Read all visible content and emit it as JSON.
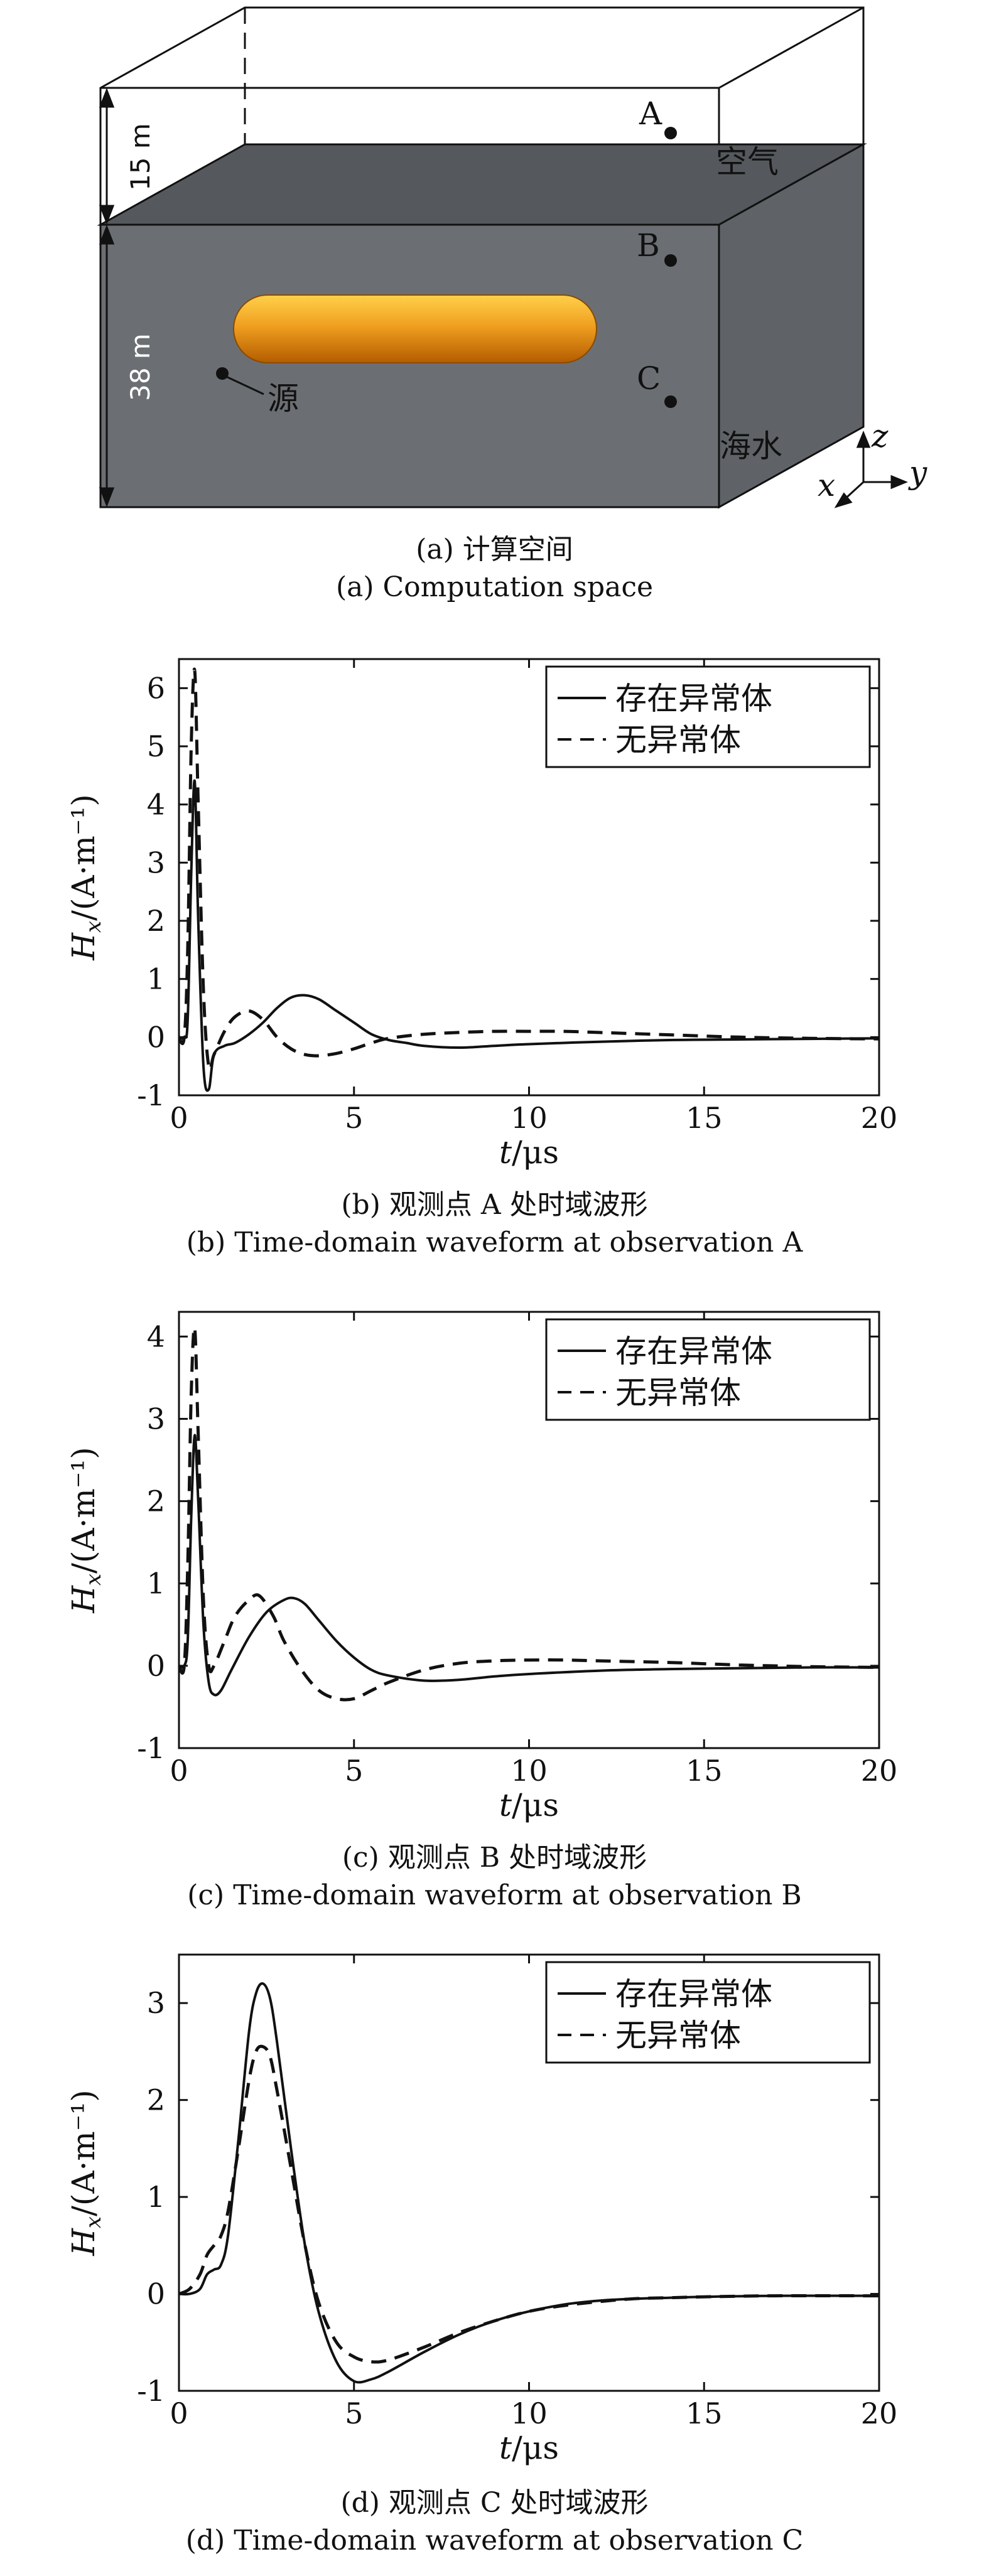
{
  "panel_a": {
    "caption_cn": "(a) 计算空间",
    "caption_en": "(a) Computation space",
    "labels": {
      "height_air": "15 m",
      "height_sea": "38 m",
      "air": "空气",
      "sea": "海水",
      "source": "源",
      "point_a": "A",
      "point_b": "B",
      "point_c": "C",
      "axis_x": "x",
      "axis_y": "y",
      "axis_z": "z"
    },
    "colors": {
      "sea": "#6b6f73",
      "cylinder": "#f0a020"
    }
  },
  "legend": {
    "solid": "存在异常体",
    "dashed": "无异常体"
  },
  "chart_data": [
    {
      "type": "line",
      "id": "b",
      "caption_cn": "(b) 观测点 A 处时域波形",
      "caption_en": "(b) Time-domain waveform at observation A",
      "xlabel": "t/μs",
      "ylabel": "Hx/(A·m⁻¹)",
      "xlim": [
        0,
        20
      ],
      "ylim": [
        -1,
        6.5
      ],
      "xticks": [
        0,
        5,
        10,
        15,
        20
      ],
      "yticks": [
        -1,
        0,
        1,
        2,
        3,
        4,
        5,
        6
      ],
      "series": [
        {
          "name": "存在异常体",
          "style": "solid",
          "x": [
            0,
            0.15,
            0.25,
            0.35,
            0.45,
            0.55,
            0.7,
            0.85,
            1.0,
            1.3,
            1.6,
            2.0,
            2.4,
            2.8,
            3.2,
            3.6,
            4.0,
            4.5,
            5.0,
            5.5,
            6.0,
            6.5,
            7.0,
            8.0,
            9.0,
            10,
            12,
            14,
            16,
            18,
            20
          ],
          "y": [
            0,
            0,
            0.3,
            2.8,
            4.4,
            2.0,
            -0.5,
            -0.9,
            -0.3,
            -0.15,
            -0.1,
            0.05,
            0.25,
            0.5,
            0.68,
            0.72,
            0.65,
            0.45,
            0.25,
            0.05,
            -0.05,
            -0.1,
            -0.15,
            -0.18,
            -0.15,
            -0.12,
            -0.08,
            -0.05,
            -0.04,
            -0.03,
            -0.02
          ]
        },
        {
          "name": "无异常体",
          "style": "dashed",
          "x": [
            0,
            0.15,
            0.25,
            0.35,
            0.45,
            0.55,
            0.7,
            0.85,
            1.0,
            1.3,
            1.6,
            2.0,
            2.4,
            2.8,
            3.2,
            3.6,
            4.0,
            4.5,
            5.0,
            5.5,
            6.0,
            7.0,
            8.0,
            9.0,
            10,
            11,
            12,
            14,
            16,
            18,
            20
          ],
          "y": [
            0,
            0,
            1.5,
            5.0,
            6.3,
            4.0,
            0.8,
            -0.5,
            -0.3,
            0.1,
            0.35,
            0.45,
            0.3,
            0.0,
            -0.2,
            -0.3,
            -0.32,
            -0.28,
            -0.2,
            -0.1,
            -0.02,
            0.05,
            0.08,
            0.1,
            0.1,
            0.1,
            0.08,
            0.04,
            0.0,
            -0.02,
            -0.03
          ]
        }
      ]
    },
    {
      "type": "line",
      "id": "c",
      "caption_cn": "(c) 观测点 B 处时域波形",
      "caption_en": "(c) Time-domain waveform at observation B",
      "xlabel": "t/μs",
      "ylabel": "Hx/(A·m⁻¹)",
      "xlim": [
        0,
        20
      ],
      "ylim": [
        -1,
        4.3
      ],
      "xticks": [
        0,
        5,
        10,
        15,
        20
      ],
      "yticks": [
        -1,
        0,
        1,
        2,
        3,
        4
      ],
      "series": [
        {
          "name": "存在异常体",
          "style": "solid",
          "x": [
            0,
            0.15,
            0.25,
            0.35,
            0.45,
            0.55,
            0.7,
            0.85,
            1.0,
            1.2,
            1.5,
            2.0,
            2.5,
            3.0,
            3.3,
            3.6,
            4.0,
            4.5,
            5.0,
            5.5,
            6.0,
            7.0,
            8.0,
            9.0,
            10,
            12,
            14,
            16,
            18,
            20
          ],
          "y": [
            0,
            0,
            0.3,
            1.8,
            2.8,
            2.0,
            0.5,
            -0.2,
            -0.35,
            -0.3,
            -0.05,
            0.35,
            0.65,
            0.8,
            0.82,
            0.75,
            0.55,
            0.3,
            0.1,
            -0.05,
            -0.12,
            -0.18,
            -0.17,
            -0.13,
            -0.1,
            -0.06,
            -0.04,
            -0.03,
            -0.02,
            -0.02
          ]
        },
        {
          "name": "无异常体",
          "style": "dashed",
          "x": [
            0,
            0.15,
            0.25,
            0.35,
            0.45,
            0.55,
            0.7,
            0.85,
            1.0,
            1.3,
            1.6,
            2.0,
            2.3,
            2.7,
            3.0,
            3.5,
            4.0,
            4.5,
            5.0,
            5.5,
            6.0,
            7.0,
            8.0,
            9.0,
            10,
            11,
            12,
            14,
            16,
            18,
            20
          ],
          "y": [
            0,
            0,
            1.2,
            3.3,
            4.1,
            2.8,
            0.8,
            0.0,
            0.0,
            0.3,
            0.6,
            0.8,
            0.85,
            0.6,
            0.3,
            -0.05,
            -0.3,
            -0.4,
            -0.4,
            -0.3,
            -0.2,
            -0.05,
            0.03,
            0.06,
            0.07,
            0.07,
            0.06,
            0.04,
            0.01,
            -0.01,
            -0.02
          ]
        }
      ]
    },
    {
      "type": "line",
      "id": "d",
      "caption_cn": "(d) 观测点 C 处时域波形",
      "caption_en": "(d) Time-domain waveform at observation C",
      "xlabel": "t/μs",
      "ylabel": "Hx/(A·m⁻¹)",
      "xlim": [
        0,
        20
      ],
      "ylim": [
        -1,
        3.5
      ],
      "xticks": [
        0,
        5,
        10,
        15,
        20
      ],
      "yticks": [
        -1,
        0,
        1,
        2,
        3
      ],
      "series": [
        {
          "name": "存在异常体",
          "style": "solid",
          "x": [
            0,
            0.3,
            0.6,
            0.8,
            1.0,
            1.2,
            1.4,
            1.7,
            2.0,
            2.2,
            2.4,
            2.6,
            2.8,
            3.2,
            3.6,
            4.0,
            4.5,
            5.0,
            5.5,
            6.0,
            7.0,
            8.0,
            9.0,
            10,
            11,
            12,
            13,
            14,
            15,
            17,
            20
          ],
          "y": [
            0,
            0,
            0.05,
            0.2,
            0.25,
            0.3,
            0.6,
            1.6,
            2.7,
            3.1,
            3.2,
            3.05,
            2.6,
            1.5,
            0.5,
            -0.2,
            -0.7,
            -0.9,
            -0.88,
            -0.8,
            -0.6,
            -0.42,
            -0.28,
            -0.18,
            -0.11,
            -0.07,
            -0.05,
            -0.04,
            -0.03,
            -0.02,
            -0.02
          ]
        },
        {
          "name": "无异常体",
          "style": "dashed",
          "x": [
            0,
            0.3,
            0.6,
            0.8,
            1.0,
            1.2,
            1.4,
            1.7,
            2.0,
            2.2,
            2.4,
            2.6,
            2.8,
            3.2,
            3.6,
            4.0,
            4.5,
            5.0,
            5.5,
            6.0,
            7.0,
            8.0,
            9.0,
            10,
            11,
            12,
            13,
            14,
            15,
            17,
            20
          ],
          "y": [
            0,
            0.05,
            0.2,
            0.4,
            0.5,
            0.6,
            0.85,
            1.5,
            2.2,
            2.5,
            2.55,
            2.45,
            2.1,
            1.3,
            0.5,
            -0.1,
            -0.5,
            -0.65,
            -0.7,
            -0.68,
            -0.55,
            -0.4,
            -0.28,
            -0.18,
            -0.12,
            -0.08,
            -0.05,
            -0.04,
            -0.03,
            -0.02,
            -0.02
          ]
        }
      ]
    }
  ]
}
